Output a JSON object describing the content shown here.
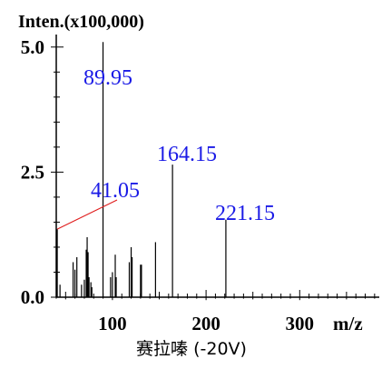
{
  "chart_data": {
    "type": "bar",
    "title": "Inten.(x100,000)",
    "xlabel": "赛拉嗪 (-20V)",
    "x_unit": "m/z",
    "xlim": [
      40,
      385
    ],
    "ylim": [
      0,
      5.25
    ],
    "x_ticks": [
      {
        "value": 100,
        "label": "100"
      },
      {
        "value": 200,
        "label": "200"
      },
      {
        "value": 300,
        "label": "300"
      }
    ],
    "y_ticks": [
      {
        "value": 0.0,
        "label": "0.0"
      },
      {
        "value": 2.5,
        "label": "2.5"
      },
      {
        "value": 5.0,
        "label": "5.0"
      }
    ],
    "peaks": [
      {
        "mz": 41.05,
        "intensity": 1.36
      },
      {
        "mz": 44,
        "intensity": 0.25
      },
      {
        "mz": 58,
        "intensity": 0.7
      },
      {
        "mz": 60,
        "intensity": 0.55
      },
      {
        "mz": 62,
        "intensity": 0.8
      },
      {
        "mz": 67,
        "intensity": 0.25
      },
      {
        "mz": 70,
        "intensity": 0.35
      },
      {
        "mz": 72,
        "intensity": 0.95
      },
      {
        "mz": 73,
        "intensity": 1.2
      },
      {
        "mz": 74,
        "intensity": 0.9
      },
      {
        "mz": 75,
        "intensity": 0.4
      },
      {
        "mz": 77,
        "intensity": 0.3
      },
      {
        "mz": 78,
        "intensity": 0.2
      },
      {
        "mz": 89.95,
        "intensity": 5.1
      },
      {
        "mz": 98,
        "intensity": 0.4
      },
      {
        "mz": 100,
        "intensity": 0.5
      },
      {
        "mz": 103,
        "intensity": 0.85
      },
      {
        "mz": 104,
        "intensity": 0.4
      },
      {
        "mz": 118,
        "intensity": 0.7
      },
      {
        "mz": 120,
        "intensity": 1.0
      },
      {
        "mz": 121,
        "intensity": 0.8
      },
      {
        "mz": 130,
        "intensity": 0.65
      },
      {
        "mz": 131,
        "intensity": 0.65
      },
      {
        "mz": 146,
        "intensity": 1.1
      },
      {
        "mz": 164.15,
        "intensity": 2.65
      },
      {
        "mz": 221.15,
        "intensity": 1.55
      }
    ],
    "peak_labels": [
      {
        "mz": 89.95,
        "text": "89.95"
      },
      {
        "mz": 164.15,
        "text": "164.15"
      },
      {
        "mz": 41.05,
        "text": "41.05"
      },
      {
        "mz": 221.15,
        "text": "221.15"
      }
    ],
    "colors": {
      "bars": "#000000",
      "labels": "#1a1ae6",
      "leader": "#e02020",
      "axes": "#000000"
    }
  }
}
